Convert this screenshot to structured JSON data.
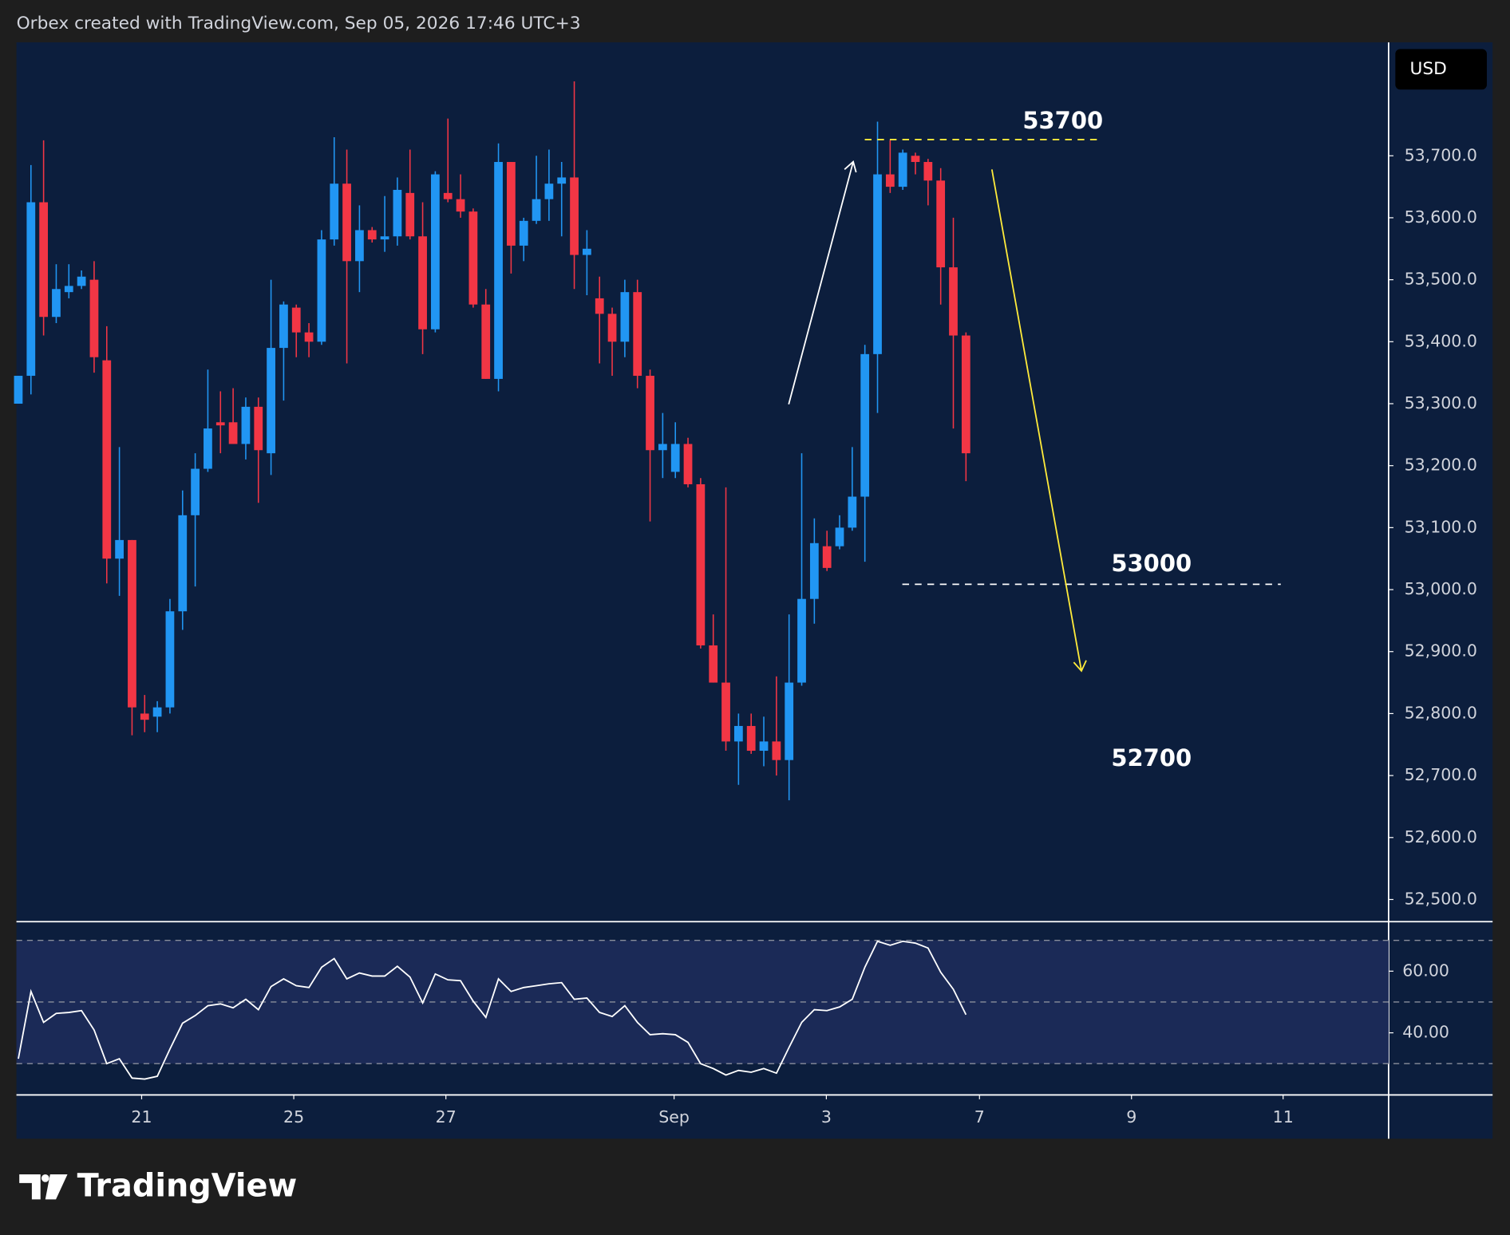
{
  "chart_data": {
    "type": "candlestick",
    "title": "Orbex created with TradingView.com, Sep 05, 2026 17:46 UTC+3",
    "currency": "USD",
    "brand": "TradingView",
    "up_color": "#2196f3",
    "down_color": "#f23645",
    "x": [
      0,
      1,
      2,
      3,
      4,
      5,
      6,
      7,
      8,
      9,
      10,
      11,
      12,
      13,
      14,
      15,
      16,
      17,
      18,
      19,
      20,
      21,
      22,
      23,
      24,
      25,
      26,
      27,
      28,
      29,
      30,
      31,
      32,
      33,
      34,
      35,
      36,
      37,
      38,
      39,
      40,
      41,
      42,
      43,
      44,
      45,
      46,
      47,
      48,
      49,
      50,
      51,
      52,
      53,
      54,
      55,
      56,
      57,
      58,
      59,
      60,
      61,
      62,
      63,
      64,
      65,
      66,
      67,
      68,
      69,
      70,
      71,
      72,
      73,
      74,
      75
    ],
    "open": [
      53300,
      53345,
      53625,
      53440,
      53480,
      53490,
      53500,
      53370,
      53050,
      53080,
      52800,
      52795,
      52810,
      52965,
      53120,
      53195,
      53270,
      53270,
      53235,
      53295,
      53220,
      53390,
      53455,
      53415,
      53400,
      53565,
      53655,
      53530,
      53580,
      53565,
      53570,
      53640,
      53570,
      53420,
      53640,
      53630,
      53610,
      53460,
      53340,
      53690,
      53555,
      53595,
      53630,
      53655,
      53665,
      53540,
      53470,
      53445,
      53400,
      53480,
      53345,
      53225,
      53190,
      53235,
      53170,
      52910,
      52850,
      52755,
      52780,
      52740,
      52755,
      52725,
      52850,
      52985,
      53070,
      53070,
      53100,
      53150,
      53380,
      53670,
      53650,
      53700,
      53690,
      53660,
      53520,
      53410
    ],
    "high": [
      53345,
      53685,
      53725,
      53525,
      53525,
      53515,
      53530,
      53425,
      53230,
      53080,
      52830,
      52820,
      52985,
      53160,
      53220,
      53355,
      53320,
      53325,
      53310,
      53310,
      53500,
      53465,
      53460,
      53430,
      53580,
      53730,
      53710,
      53620,
      53585,
      53635,
      53665,
      53710,
      53625,
      53675,
      53760,
      53670,
      53615,
      53485,
      53720,
      53690,
      53600,
      53700,
      53710,
      53690,
      53820,
      53580,
      53505,
      53455,
      53500,
      53500,
      53355,
      53285,
      53270,
      53245,
      53180,
      52960,
      53165,
      52800,
      52800,
      52795,
      52860,
      52960,
      53220,
      53115,
      53095,
      53120,
      53230,
      53395,
      53755,
      53725,
      53710,
      53705,
      53695,
      53680,
      53600,
      53415
    ],
    "low": [
      53300,
      53315,
      53410,
      53430,
      53470,
      53485,
      53350,
      53010,
      52990,
      52765,
      52770,
      52770,
      52800,
      52935,
      53005,
      53190,
      53220,
      53235,
      53210,
      53140,
      53185,
      53305,
      53375,
      53375,
      53395,
      53555,
      53365,
      53480,
      53560,
      53545,
      53555,
      53565,
      53380,
      53415,
      53625,
      53600,
      53455,
      53340,
      53320,
      53510,
      53530,
      53590,
      53595,
      53570,
      53485,
      53475,
      53365,
      53345,
      53375,
      53325,
      53110,
      53180,
      53180,
      53165,
      52905,
      52850,
      52740,
      52685,
      52735,
      52715,
      52700,
      52660,
      52845,
      52945,
      53030,
      53065,
      53095,
      53045,
      53285,
      53640,
      53645,
      53670,
      53620,
      53460,
      53260,
      53175
    ],
    "close": [
      53345,
      53625,
      53440,
      53485,
      53490,
      53505,
      53375,
      53050,
      53080,
      52810,
      52790,
      52810,
      52965,
      53120,
      53195,
      53260,
      53265,
      53235,
      53295,
      53225,
      53390,
      53460,
      53415,
      53400,
      53565,
      53655,
      53530,
      53580,
      53565,
      53570,
      53645,
      53570,
      53420,
      53670,
      53630,
      53610,
      53460,
      53340,
      53690,
      53555,
      53595,
      53630,
      53655,
      53665,
      53540,
      53550,
      53445,
      53400,
      53480,
      53345,
      53225,
      53235,
      53235,
      53170,
      52910,
      52850,
      52755,
      52780,
      52740,
      52755,
      52725,
      52850,
      52985,
      53075,
      53035,
      53100,
      53150,
      53380,
      53670,
      53650,
      53705,
      53690,
      53660,
      53520,
      53410,
      53220
    ],
    "xlim": [
      -0.15,
      108.45
    ],
    "xticks": [
      {
        "value": 9.76,
        "label": "21"
      },
      {
        "value": 21.8,
        "label": "25"
      },
      {
        "value": 33.84,
        "label": "27"
      },
      {
        "value": 51.9,
        "label": "Sep"
      },
      {
        "value": 63.95,
        "label": "3"
      },
      {
        "value": 76.07,
        "label": "7"
      },
      {
        "value": 88.1,
        "label": "9"
      },
      {
        "value": 100.1,
        "label": "11"
      }
    ],
    "ylim": [
      52465,
      53883
    ],
    "yticks": [
      {
        "value": 52500,
        "label": "52,500.0"
      },
      {
        "value": 52600,
        "label": "52,600.0"
      },
      {
        "value": 52700,
        "label": "52,700.0"
      },
      {
        "value": 52800,
        "label": "52,800.0"
      },
      {
        "value": 52900,
        "label": "52,900.0"
      },
      {
        "value": 53000,
        "label": "53,000.0"
      },
      {
        "value": 53100,
        "label": "53,100.0"
      },
      {
        "value": 53200,
        "label": "53,200.0"
      },
      {
        "value": 53300,
        "label": "53,300.0"
      },
      {
        "value": 53400,
        "label": "53,400.0"
      },
      {
        "value": 53500,
        "label": "53,500.0"
      },
      {
        "value": 53600,
        "label": "53,600.0"
      },
      {
        "value": 53700,
        "label": "53,700.0"
      }
    ],
    "annotations": [
      "53700",
      "53000",
      "52700"
    ],
    "rsi": {
      "values": [
        31.6,
        53.4,
        43.4,
        46.3,
        46.6,
        47.2,
        40.9,
        30.0,
        31.6,
        25.3,
        25.0,
        25.9,
        34.7,
        43.1,
        45.6,
        48.8,
        49.4,
        48.1,
        50.9,
        47.5,
        55.0,
        57.5,
        55.3,
        54.7,
        61.3,
        64.1,
        57.5,
        59.4,
        58.4,
        58.4,
        61.6,
        58.1,
        49.7,
        59.1,
        57.2,
        56.9,
        50.3,
        45.0,
        57.5,
        53.4,
        54.7,
        55.3,
        55.9,
        56.3,
        50.9,
        51.3,
        46.6,
        45.3,
        48.8,
        43.4,
        39.4,
        39.7,
        39.4,
        36.9,
        30.0,
        28.4,
        26.3,
        27.8,
        27.2,
        28.4,
        26.9,
        35.3,
        43.4,
        47.5,
        47.2,
        48.4,
        50.9,
        61.3,
        69.7,
        68.4,
        69.7,
        69.1,
        67.5,
        59.7,
        54.1,
        45.9
      ],
      "color": "#ffffff",
      "ylim": [
        20,
        75.9
      ],
      "yticks": [
        {
          "value": 40,
          "label": "40.00"
        },
        {
          "value": 60,
          "label": "60.00"
        }
      ],
      "levels": [
        70,
        50,
        30
      ],
      "band_color": "#1b2a57"
    }
  }
}
